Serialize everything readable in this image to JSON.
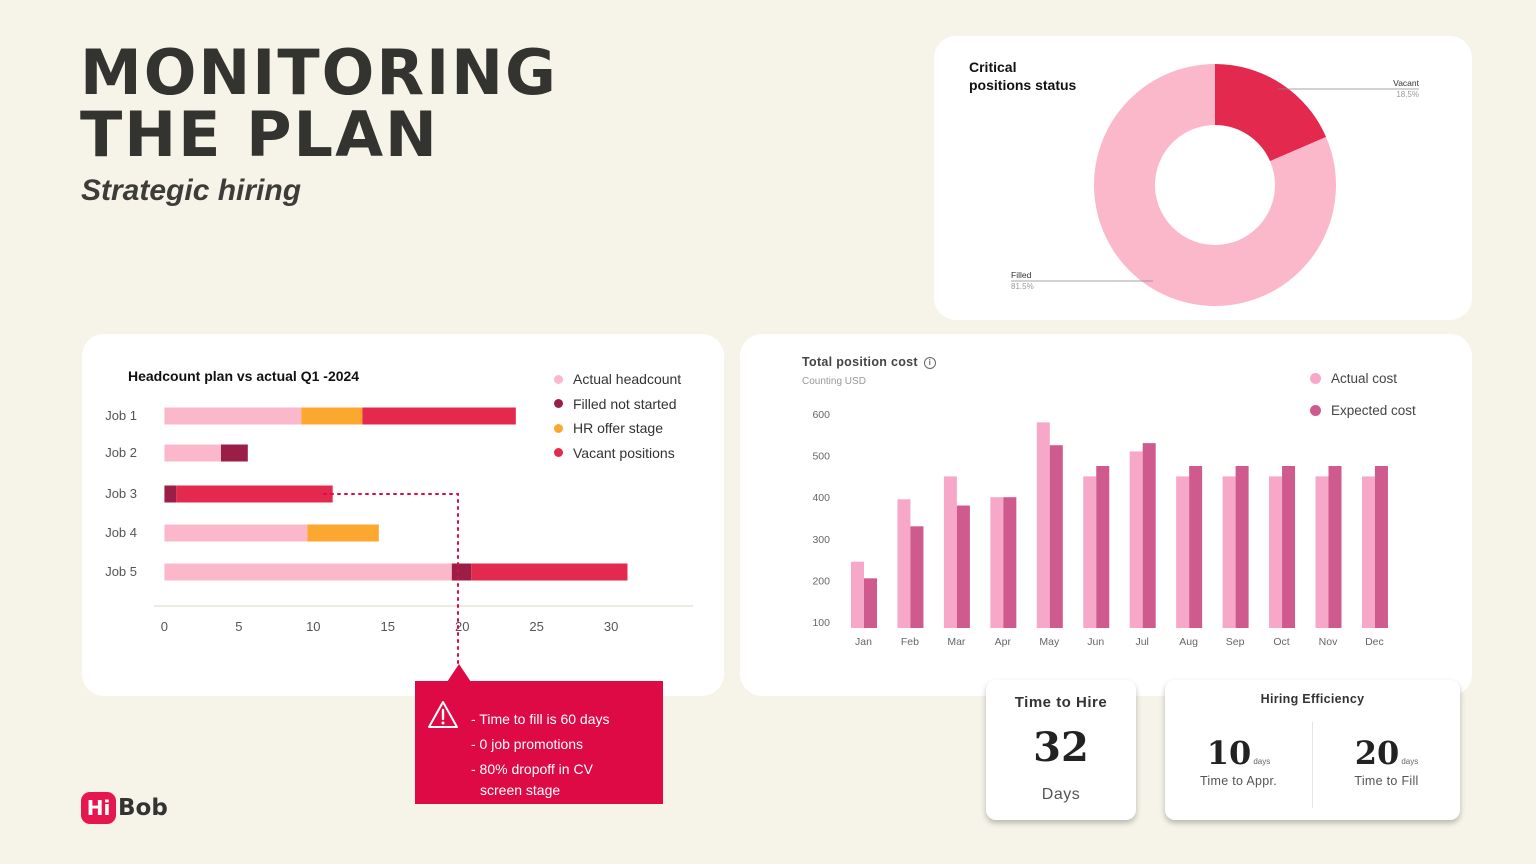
{
  "header": {
    "title_line1": "MONITORING",
    "title_line2": "THE PLAN",
    "subtitle": "Strategic hiring"
  },
  "colors": {
    "background": "#f6f3e9",
    "accent_red": "#dd0a45",
    "light_pink": "#fbb8cb",
    "dark_red": "#9b1e47",
    "orange": "#fca72f",
    "vacant_red": "#e4294f",
    "actual_cost": "#f7a8c8",
    "expected_cost": "#cf5b8e"
  },
  "chart_data": [
    {
      "type": "pie",
      "title": "Critical positions status",
      "labels": [
        "Vacant",
        "Filled"
      ],
      "values": [
        18.5,
        81.5
      ],
      "value_labels": [
        "18.5%",
        "81.5%"
      ],
      "colors": [
        "#e4294f",
        "#fbb8cb"
      ]
    },
    {
      "type": "bar",
      "orientation": "horizontal",
      "stacked": true,
      "title": "Headcount plan vs actual Q1 -2024",
      "categories": [
        "Job 1",
        "Job 2",
        "Job 3",
        "Job 4",
        "Job 5"
      ],
      "series": [
        {
          "name": "Actual headcount",
          "color": "#fbb8cb",
          "values": [
            9.2,
            3.8,
            0,
            9.6,
            19.3
          ]
        },
        {
          "name": "Filled not started",
          "color": "#9b1e47",
          "values": [
            0,
            1.8,
            0.8,
            0,
            1.3
          ]
        },
        {
          "name": "HR offer stage",
          "color": "#fca72f",
          "values": [
            4.1,
            0,
            0,
            4.8,
            0
          ]
        },
        {
          "name": "Vacant positions",
          "color": "#e4294f",
          "values": [
            10.3,
            0,
            10.5,
            0,
            10.5
          ]
        }
      ],
      "xticks": [
        0,
        5,
        10,
        15,
        20,
        25,
        30
      ],
      "xlim": [
        -0.7,
        35.5
      ],
      "legend_position": "top-right"
    },
    {
      "type": "bar",
      "title": "Total position cost",
      "subtitle": "Counting USD",
      "categories": [
        "Jan",
        "Feb",
        "Mar",
        "Apr",
        "May",
        "Jun",
        "Jul",
        "Aug",
        "Sep",
        "Oct",
        "Nov",
        "Dec"
      ],
      "series": [
        {
          "name": "Actual cost",
          "color": "#f7a8c8",
          "values": [
            245,
            395,
            450,
            400,
            580,
            450,
            510,
            450,
            450,
            450,
            450,
            450
          ]
        },
        {
          "name": "Expected cost",
          "color": "#cf5b8e",
          "values": [
            205,
            330,
            380,
            400,
            525,
            475,
            530,
            475,
            475,
            475,
            475,
            475
          ]
        }
      ],
      "yticks": [
        100,
        200,
        300,
        400,
        500,
        600
      ],
      "ylim": [
        100,
        600
      ],
      "grid": false,
      "legend_position": "top-right"
    }
  ],
  "alert": {
    "lines": [
      "- Time to fill is 60 days",
      "- 0 job promotions",
      "- 80%  dropoff  in CV"
    ],
    "continuation": "screen stage"
  },
  "time_to_hire": {
    "title": "Time to Hire",
    "value": "32",
    "unit": "Days"
  },
  "hiring_efficiency": {
    "title": "Hiring Efficiency",
    "left": {
      "value": "10",
      "unit": "days",
      "label": "Time to Appr."
    },
    "right": {
      "value": "20",
      "unit": "days",
      "label": "Time to Fill"
    }
  },
  "logo": {
    "badge": "Hi",
    "text": "Bob"
  }
}
